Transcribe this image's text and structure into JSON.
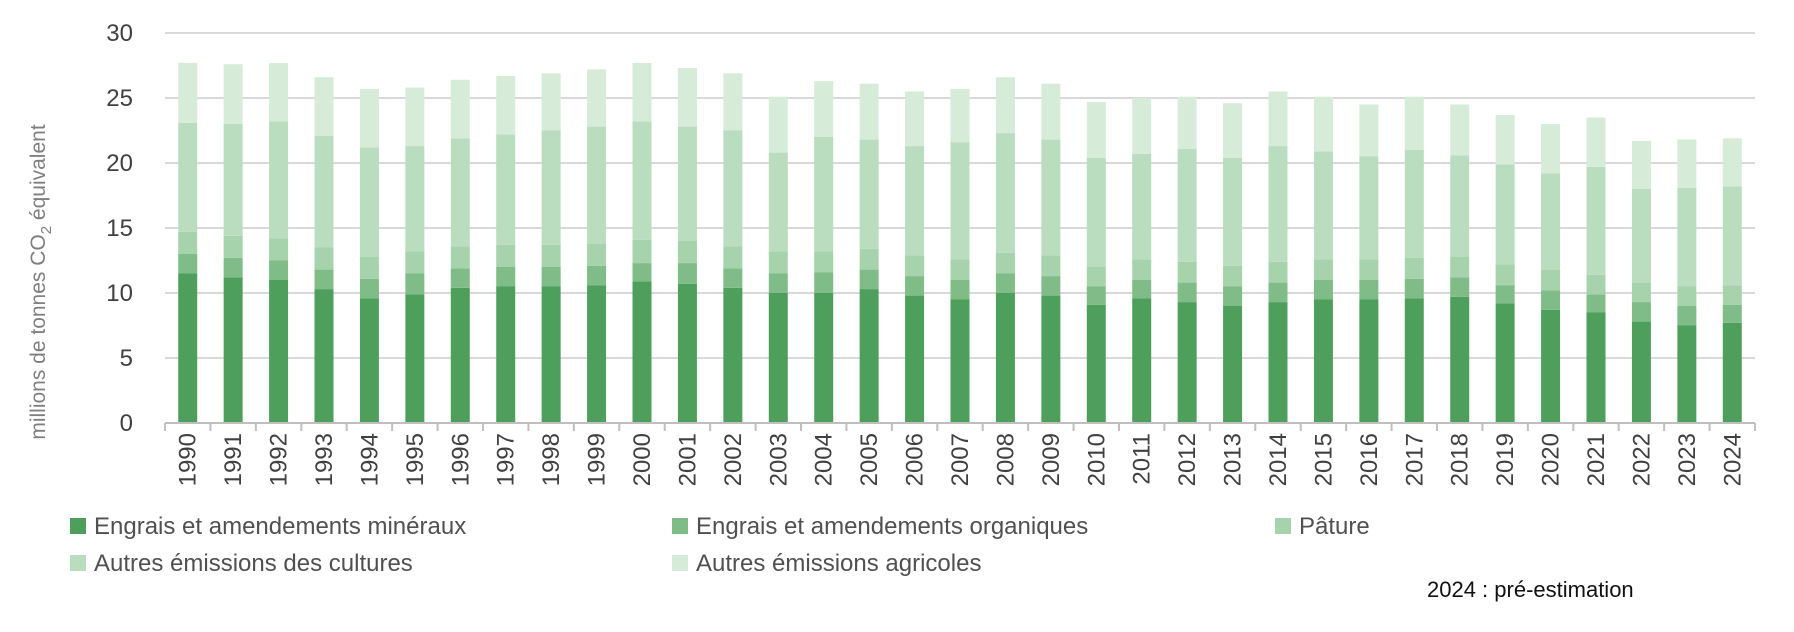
{
  "chart_data": {
    "type": "bar",
    "stacked": true,
    "title": "",
    "xlabel": "",
    "ylabel_parts": [
      "millions de tonnes CO",
      "2",
      " équivalent"
    ],
    "ylim": [
      0,
      30
    ],
    "yticks": [
      0,
      5,
      10,
      15,
      20,
      25,
      30
    ],
    "grid": true,
    "legend_position": "bottom",
    "categories": [
      "1990",
      "1991",
      "1992",
      "1993",
      "1994",
      "1995",
      "1996",
      "1997",
      "1998",
      "1999",
      "2000",
      "2001",
      "2002",
      "2003",
      "2004",
      "2005",
      "2006",
      "2007",
      "2008",
      "2009",
      "2010",
      "2011",
      "2012",
      "2013",
      "2014",
      "2015",
      "2016",
      "2017",
      "2018",
      "2019",
      "2020",
      "2021",
      "2022",
      "2023",
      "2024"
    ],
    "series": [
      {
        "name": "Engrais et amendements minéraux",
        "color": "#4e9f5b",
        "values": [
          11.5,
          11.2,
          11.0,
          10.3,
          9.6,
          9.9,
          10.4,
          10.5,
          10.5,
          10.6,
          10.9,
          10.7,
          10.4,
          10.0,
          10.0,
          10.3,
          9.8,
          9.5,
          10.0,
          9.8,
          9.1,
          9.6,
          9.3,
          9.0,
          9.3,
          9.5,
          9.5,
          9.6,
          9.7,
          9.2,
          8.7,
          8.5,
          7.8,
          7.5,
          7.7
        ]
      },
      {
        "name": "Engrais et amendements organiques",
        "color": "#7fbc87",
        "values": [
          1.5,
          1.5,
          1.5,
          1.5,
          1.5,
          1.6,
          1.5,
          1.5,
          1.5,
          1.5,
          1.4,
          1.6,
          1.5,
          1.5,
          1.6,
          1.5,
          1.5,
          1.5,
          1.5,
          1.5,
          1.4,
          1.4,
          1.5,
          1.5,
          1.5,
          1.5,
          1.5,
          1.5,
          1.5,
          1.4,
          1.5,
          1.4,
          1.5,
          1.5,
          1.4
        ]
      },
      {
        "name": "Pâture",
        "color": "#a6d3ab",
        "values": [
          1.7,
          1.7,
          1.7,
          1.7,
          1.7,
          1.7,
          1.7,
          1.7,
          1.7,
          1.7,
          1.8,
          1.7,
          1.7,
          1.7,
          1.6,
          1.6,
          1.6,
          1.6,
          1.6,
          1.6,
          1.5,
          1.6,
          1.6,
          1.6,
          1.6,
          1.6,
          1.6,
          1.6,
          1.6,
          1.6,
          1.6,
          1.5,
          1.5,
          1.5,
          1.5
        ]
      },
      {
        "name": "Autres émissions des cultures",
        "color": "#b9ddbe",
        "values": [
          8.4,
          8.6,
          9.0,
          8.6,
          8.4,
          8.1,
          8.3,
          8.5,
          8.8,
          9.0,
          9.1,
          8.8,
          8.9,
          7.6,
          8.8,
          8.4,
          8.4,
          9.0,
          9.2,
          8.9,
          8.4,
          8.1,
          8.7,
          8.3,
          8.9,
          8.3,
          7.9,
          8.3,
          7.8,
          7.7,
          7.4,
          8.3,
          7.2,
          7.6,
          7.6
        ]
      },
      {
        "name": "Autres émissions agricoles",
        "color": "#d6ecd8",
        "values": [
          4.6,
          4.6,
          4.5,
          4.5,
          4.5,
          4.5,
          4.5,
          4.5,
          4.4,
          4.4,
          4.5,
          4.5,
          4.4,
          4.3,
          4.3,
          4.3,
          4.2,
          4.1,
          4.3,
          4.3,
          4.3,
          4.3,
          4.0,
          4.2,
          4.2,
          4.2,
          4.0,
          4.1,
          3.9,
          3.8,
          3.8,
          3.8,
          3.7,
          3.7,
          3.7
        ]
      }
    ],
    "annotation": "2024 : pré-estimation"
  }
}
